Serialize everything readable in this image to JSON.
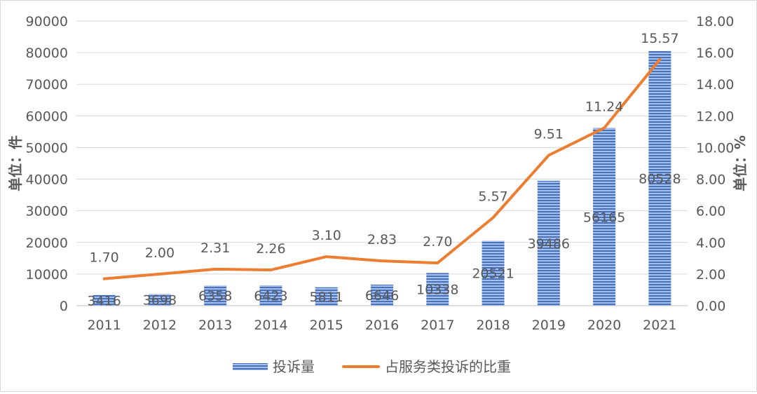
{
  "chart_data": {
    "type": "bar+line",
    "categories": [
      "2011",
      "2012",
      "2013",
      "2014",
      "2015",
      "2016",
      "2017",
      "2018",
      "2019",
      "2020",
      "2021"
    ],
    "series": [
      {
        "name": "投诉量",
        "type": "bar",
        "axis": "left",
        "color": "#4472c4",
        "values": [
          3416,
          3698,
          6358,
          6423,
          5811,
          6646,
          10338,
          20521,
          39486,
          56165,
          80528
        ]
      },
      {
        "name": "占服务类投诉的比重",
        "type": "line",
        "axis": "right",
        "color": "#ed7d31",
        "values": [
          1.7,
          2.0,
          2.31,
          2.26,
          3.1,
          2.83,
          2.7,
          5.57,
          9.51,
          11.24,
          15.57
        ]
      }
    ],
    "ylabel": "单位：件",
    "y2label": "单位：%",
    "ylim": [
      0,
      90000
    ],
    "y2lim": [
      0,
      18
    ],
    "yticks": [
      "0",
      "10000",
      "20000",
      "30000",
      "40000",
      "50000",
      "60000",
      "70000",
      "80000",
      "90000"
    ],
    "y2ticks": [
      "0.00",
      "2.00",
      "4.00",
      "6.00",
      "8.00",
      "10.00",
      "12.00",
      "14.00",
      "16.00",
      "18.00"
    ],
    "grid": true,
    "legend": "bottom"
  }
}
